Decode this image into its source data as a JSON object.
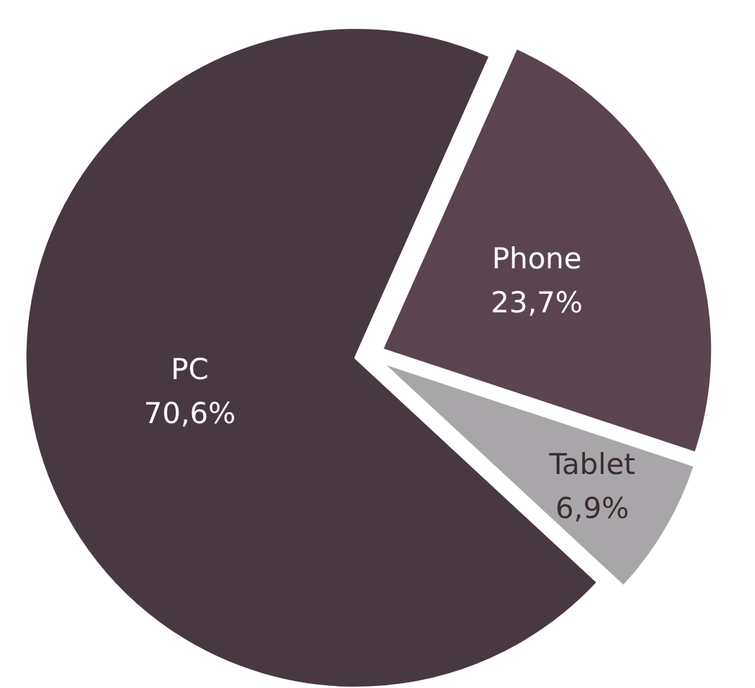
{
  "chart_data": {
    "type": "pie",
    "categories": [
      "Phone",
      "Tablet",
      "PC"
    ],
    "values": [
      23.7,
      6.9,
      70.6
    ],
    "colors": [
      "#5a4450",
      "#a9a6a9",
      "#483841"
    ],
    "value_labels": [
      "23,7%",
      "6,9%",
      "70,6%"
    ]
  }
}
